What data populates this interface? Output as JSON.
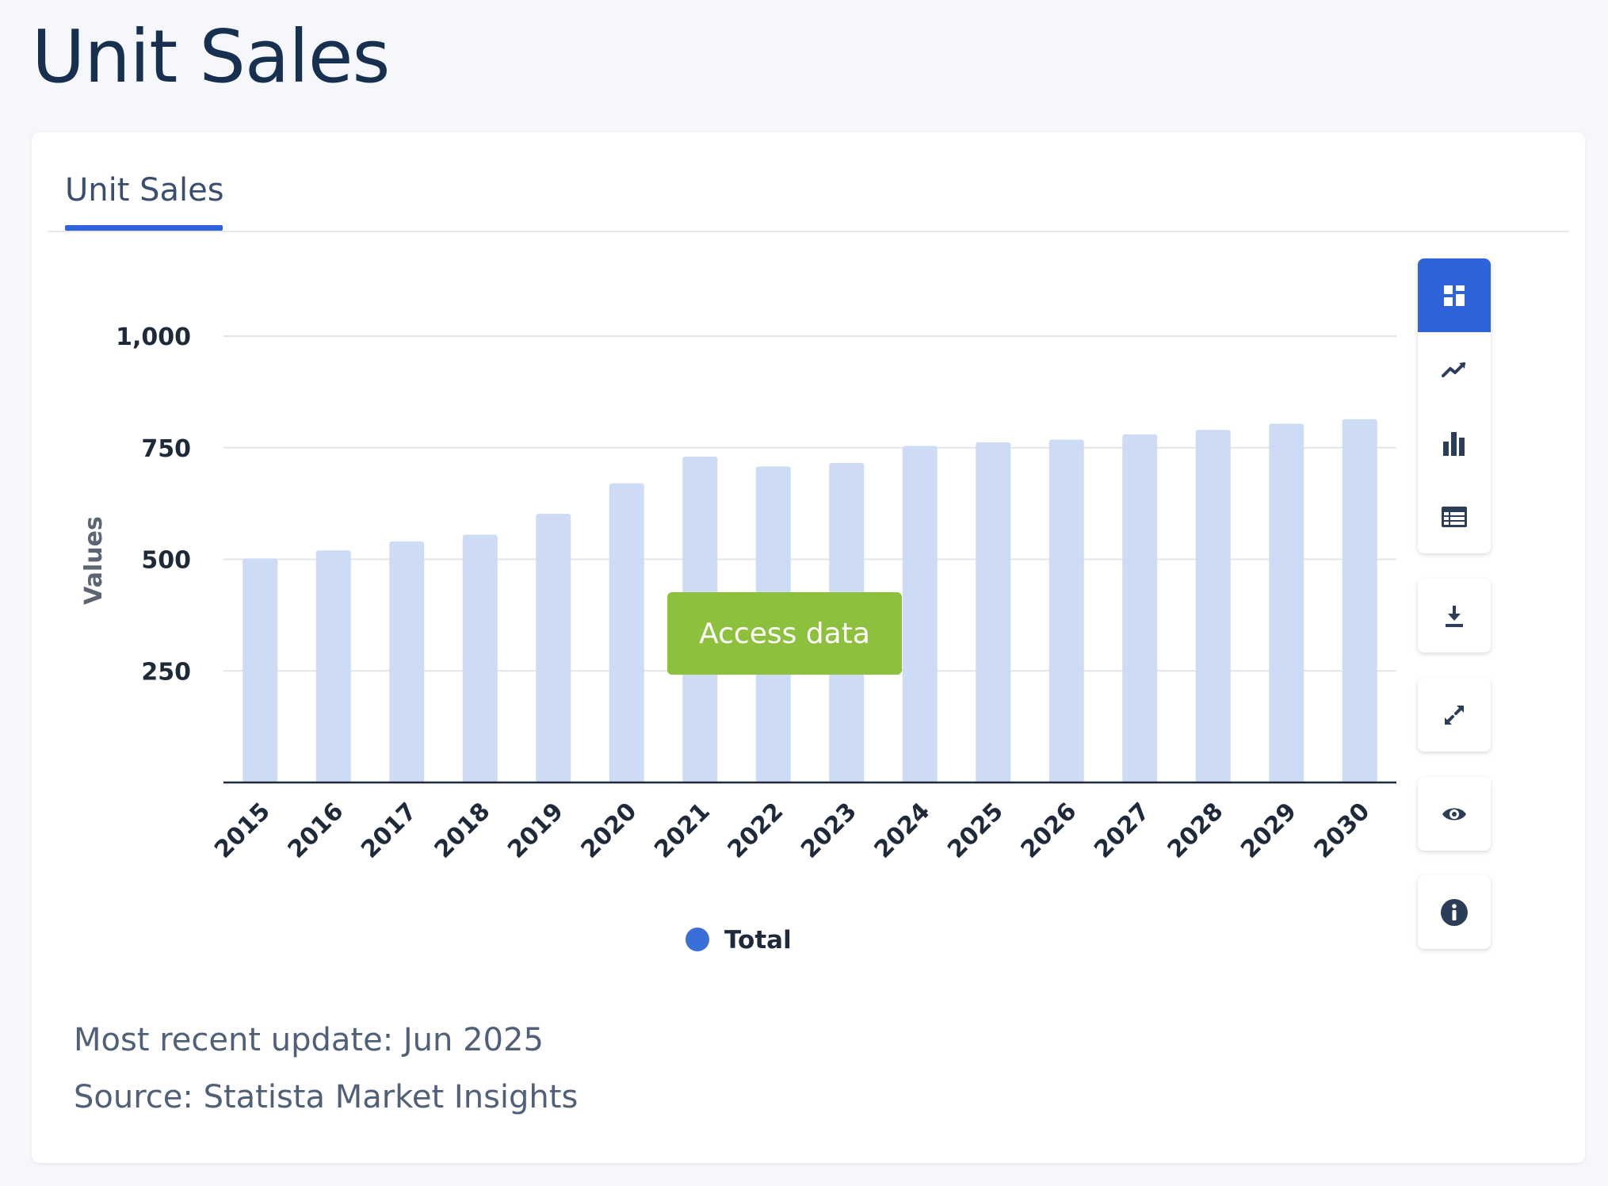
{
  "page": {
    "title": "Unit Sales"
  },
  "card": {
    "tab_label": "Unit Sales",
    "access_button": "Access data",
    "most_recent_update": "Most recent update: Jun 2025",
    "source": "Source: Statista Market Insights"
  },
  "toolbar": {
    "icons": [
      "dashboard-icon",
      "line-chart-icon",
      "bar-chart-icon",
      "table-icon",
      "download-icon",
      "expand-icon",
      "eye-icon",
      "info-icon"
    ],
    "active": "dashboard-icon"
  },
  "colors": {
    "bar": "#cddcf4",
    "accent": "#2f63dc",
    "legend_dot": "#3b6fd8",
    "access_button": "#8cc03d"
  },
  "chart_data": {
    "type": "bar",
    "categories": [
      "2015",
      "2016",
      "2017",
      "2018",
      "2019",
      "2020",
      "2021",
      "2022",
      "2023",
      "2024",
      "2025",
      "2026",
      "2027",
      "2028",
      "2029",
      "2030"
    ],
    "series": [
      {
        "name": "Total",
        "values": [
          502,
          520,
          540,
          555,
          602,
          670,
          730,
          708,
          716,
          754,
          762,
          768,
          780,
          790,
          804,
          814
        ]
      }
    ],
    "ylabel": "Values",
    "xlabel": "",
    "ylim": [
      0,
      1000
    ],
    "yticks": [
      "250",
      "500",
      "750",
      "1,000"
    ],
    "yticks_values": [
      250,
      500,
      750,
      1000
    ],
    "grid": true,
    "legend": "bottom-center"
  }
}
